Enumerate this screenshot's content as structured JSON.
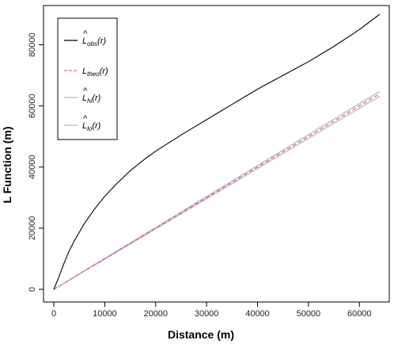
{
  "chart_data": {
    "type": "line",
    "title": "",
    "xlabel": "Distance (m)",
    "ylabel": "L Function (m)",
    "xlim": [
      0,
      64000
    ],
    "ylim": [
      0,
      90000
    ],
    "x_ticks": [
      0,
      10000,
      20000,
      30000,
      40000,
      50000,
      60000
    ],
    "y_ticks": [
      0,
      20000,
      40000,
      60000,
      80000
    ],
    "x_tick_labels": [
      "0",
      "10000",
      "20000",
      "30000",
      "40000",
      "50000",
      "60000"
    ],
    "y_tick_labels": [
      "0",
      "20000",
      "40000",
      "60000",
      "80000"
    ],
    "grid": false,
    "legend_position": "top-left",
    "series": [
      {
        "name": "L̂obs(r)",
        "color": "#000000",
        "style": "solid",
        "x": [
          0,
          1000,
          2000,
          3000,
          4000,
          6000,
          8000,
          10000,
          12000,
          15000,
          18000,
          20000,
          25000,
          30000,
          35000,
          40000,
          45000,
          50000,
          55000,
          60000,
          64000
        ],
        "y": [
          0,
          4000,
          8500,
          12500,
          15800,
          21500,
          26300,
          30400,
          34000,
          38800,
          42800,
          45200,
          50500,
          55500,
          60500,
          65500,
          70000,
          74500,
          79500,
          85000,
          90000
        ]
      },
      {
        "name": "Ltheo(r)",
        "color": "#e07070",
        "style": "dashed",
        "x": [
          0,
          64000
        ],
        "y": [
          0,
          64000
        ]
      },
      {
        "name": "L̂hi(r)",
        "color": "#b8b8b8",
        "style": "solid",
        "x": [
          0,
          64000
        ],
        "y": [
          0,
          64800
        ]
      },
      {
        "name": "L̂lo(r)",
        "color": "#b8b8b8",
        "style": "solid",
        "x": [
          0,
          64000
        ],
        "y": [
          0,
          63200
        ]
      }
    ],
    "legend": [
      {
        "main": "L",
        "hat": true,
        "sub": "obs",
        "arg": "(r)"
      },
      {
        "main": "L",
        "hat": false,
        "sub": "theo",
        "arg": "(r)"
      },
      {
        "main": "L",
        "hat": true,
        "sub": "hi",
        "arg": "(r)"
      },
      {
        "main": "L",
        "hat": true,
        "sub": "lo",
        "arg": "(r)"
      }
    ]
  }
}
